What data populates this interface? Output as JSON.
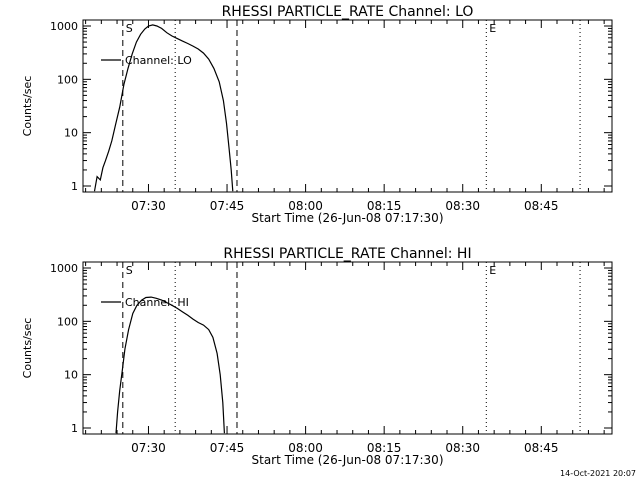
{
  "footer": {
    "timestamp": "14-Oct-2021 20:07"
  },
  "chart_data": [
    {
      "type": "line",
      "title": "RHESSI PARTICLE_RATE Channel: LO",
      "xlabel": "Start Time (26-Jun-08 07:17:30)",
      "ylabel": "Counts/sec",
      "yscale": "log",
      "ylim": [
        1,
        1000
      ],
      "xlim_minutes": [
        0,
        101
      ],
      "xticks": [
        {
          "minutes": 12.5,
          "label": "07:30"
        },
        {
          "minutes": 27.5,
          "label": "07:45"
        },
        {
          "minutes": 42.5,
          "label": "08:00"
        },
        {
          "minutes": 57.5,
          "label": "08:15"
        },
        {
          "minutes": 72.5,
          "label": "08:30"
        },
        {
          "minutes": 87.5,
          "label": "08:45"
        }
      ],
      "yticks": [
        {
          "value": 1,
          "label": "1"
        },
        {
          "value": 10,
          "label": "10"
        },
        {
          "value": 100,
          "label": "100"
        },
        {
          "value": 1000,
          "label": "1000"
        }
      ],
      "markers": [
        {
          "label": "S",
          "minutes": 7.6,
          "style": "dashed"
        },
        {
          "label": "",
          "minutes": 17.6,
          "style": "dotted"
        },
        {
          "label": "",
          "minutes": 29.4,
          "style": "dashed"
        },
        {
          "label": "E",
          "minutes": 77.0,
          "style": "dotted"
        },
        {
          "label": "",
          "minutes": 94.9,
          "style": "dotted"
        }
      ],
      "legend": {
        "label": "Channel: LO",
        "position": "top-left"
      },
      "series": [
        {
          "name": "Channel: LO",
          "points": [
            [
              2.2,
              0.8
            ],
            [
              2.7,
              1.5
            ],
            [
              3.3,
              1.3
            ],
            [
              3.8,
              2.2
            ],
            [
              4.3,
              3.0
            ],
            [
              4.9,
              4.5
            ],
            [
              5.5,
              7
            ],
            [
              6.2,
              14
            ],
            [
              7.0,
              30
            ],
            [
              7.8,
              80
            ],
            [
              8.6,
              160
            ],
            [
              9.4,
              300
            ],
            [
              10.2,
              500
            ],
            [
              11.0,
              700
            ],
            [
              11.8,
              880
            ],
            [
              12.5,
              1000
            ],
            [
              13.3,
              1050
            ],
            [
              14.1,
              1000
            ],
            [
              15.0,
              900
            ],
            [
              16.0,
              750
            ],
            [
              17.0,
              650
            ],
            [
              18.0,
              580
            ],
            [
              19.0,
              520
            ],
            [
              20.0,
              470
            ],
            [
              21.0,
              420
            ],
            [
              22.0,
              370
            ],
            [
              23.0,
              310
            ],
            [
              24.0,
              240
            ],
            [
              25.0,
              160
            ],
            [
              26.0,
              90
            ],
            [
              26.8,
              40
            ],
            [
              27.4,
              15
            ],
            [
              27.9,
              5
            ],
            [
              28.3,
              2
            ],
            [
              28.6,
              0.8
            ]
          ]
        }
      ]
    },
    {
      "type": "line",
      "title": "RHESSI PARTICLE_RATE Channel: HI",
      "xlabel": "Start Time (26-Jun-08 07:17:30)",
      "ylabel": "Counts/sec",
      "yscale": "log",
      "ylim": [
        1,
        1000
      ],
      "xlim_minutes": [
        0,
        101
      ],
      "xticks": [
        {
          "minutes": 12.5,
          "label": "07:30"
        },
        {
          "minutes": 27.5,
          "label": "07:45"
        },
        {
          "minutes": 42.5,
          "label": "08:00"
        },
        {
          "minutes": 57.5,
          "label": "08:15"
        },
        {
          "minutes": 72.5,
          "label": "08:30"
        },
        {
          "minutes": 87.5,
          "label": "08:45"
        }
      ],
      "yticks": [
        {
          "value": 1,
          "label": "1"
        },
        {
          "value": 10,
          "label": "10"
        },
        {
          "value": 100,
          "label": "100"
        },
        {
          "value": 1000,
          "label": "1000"
        }
      ],
      "markers": [
        {
          "label": "S",
          "minutes": 7.6,
          "style": "dashed"
        },
        {
          "label": "",
          "minutes": 17.6,
          "style": "dotted"
        },
        {
          "label": "",
          "minutes": 29.4,
          "style": "dashed"
        },
        {
          "label": "E",
          "minutes": 77.0,
          "style": "dotted"
        },
        {
          "label": "",
          "minutes": 94.9,
          "style": "dotted"
        }
      ],
      "legend": {
        "label": "Channel: HI",
        "position": "top-left"
      },
      "series": [
        {
          "name": "Channel: HI",
          "points": [
            [
              6.3,
              0.8
            ],
            [
              6.6,
              2
            ],
            [
              7.0,
              5
            ],
            [
              7.5,
              12
            ],
            [
              8.0,
              30
            ],
            [
              8.7,
              70
            ],
            [
              9.5,
              140
            ],
            [
              10.3,
              200
            ],
            [
              11.2,
              250
            ],
            [
              12.0,
              280
            ],
            [
              13.0,
              285
            ],
            [
              14.0,
              270
            ],
            [
              15.0,
              250
            ],
            [
              16.0,
              225
            ],
            [
              17.0,
              200
            ],
            [
              18.0,
              175
            ],
            [
              19.0,
              150
            ],
            [
              20.0,
              130
            ],
            [
              21.0,
              110
            ],
            [
              22.0,
              95
            ],
            [
              23.0,
              85
            ],
            [
              24.0,
              70
            ],
            [
              24.8,
              50
            ],
            [
              25.6,
              25
            ],
            [
              26.2,
              10
            ],
            [
              26.7,
              3
            ],
            [
              27.0,
              0.8
            ]
          ]
        }
      ]
    }
  ]
}
